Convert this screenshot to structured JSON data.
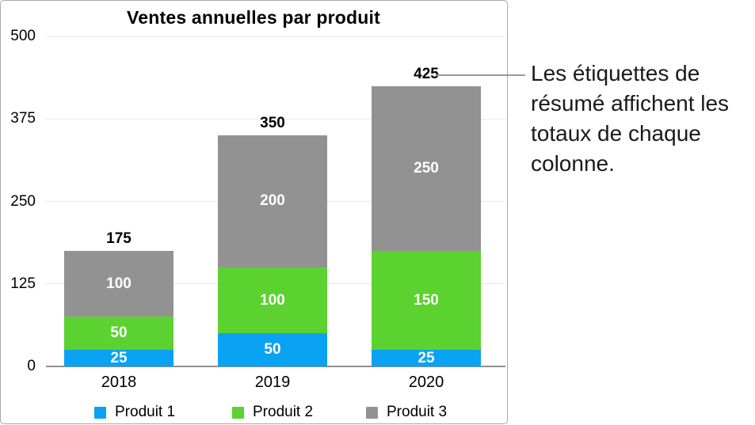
{
  "chart_data": {
    "type": "bar",
    "stacked": true,
    "title": "Ventes annuelles par produit",
    "categories": [
      "2018",
      "2019",
      "2020"
    ],
    "series": [
      {
        "name": "Produit 1",
        "color": "#0aa2f3",
        "values": [
          25,
          50,
          25
        ]
      },
      {
        "name": "Produit 2",
        "color": "#5bd230",
        "values": [
          50,
          100,
          150
        ]
      },
      {
        "name": "Produit 3",
        "color": "#929292",
        "values": [
          100,
          200,
          250
        ]
      }
    ],
    "totals": [
      175,
      350,
      425
    ],
    "segment_label_color": "#ffffff",
    "xlabel": "",
    "ylabel": "",
    "y_axis": {
      "min": 0,
      "max": 500,
      "ticks": [
        0,
        125,
        250,
        375,
        500
      ]
    },
    "grid": true,
    "legend_position": "bottom"
  },
  "annotation": {
    "text": "Les étiquettes de\nrésumé affichent les\ntotaux de chaque\ncolonne.",
    "callout_points_to": "425",
    "line_color": "#999999"
  },
  "colors": {
    "panel_border": "#a9a9a9",
    "gridline": "#e8e8e8",
    "axis_line": "#8f8f8f",
    "text": "#000000",
    "background": "#ffffff"
  }
}
